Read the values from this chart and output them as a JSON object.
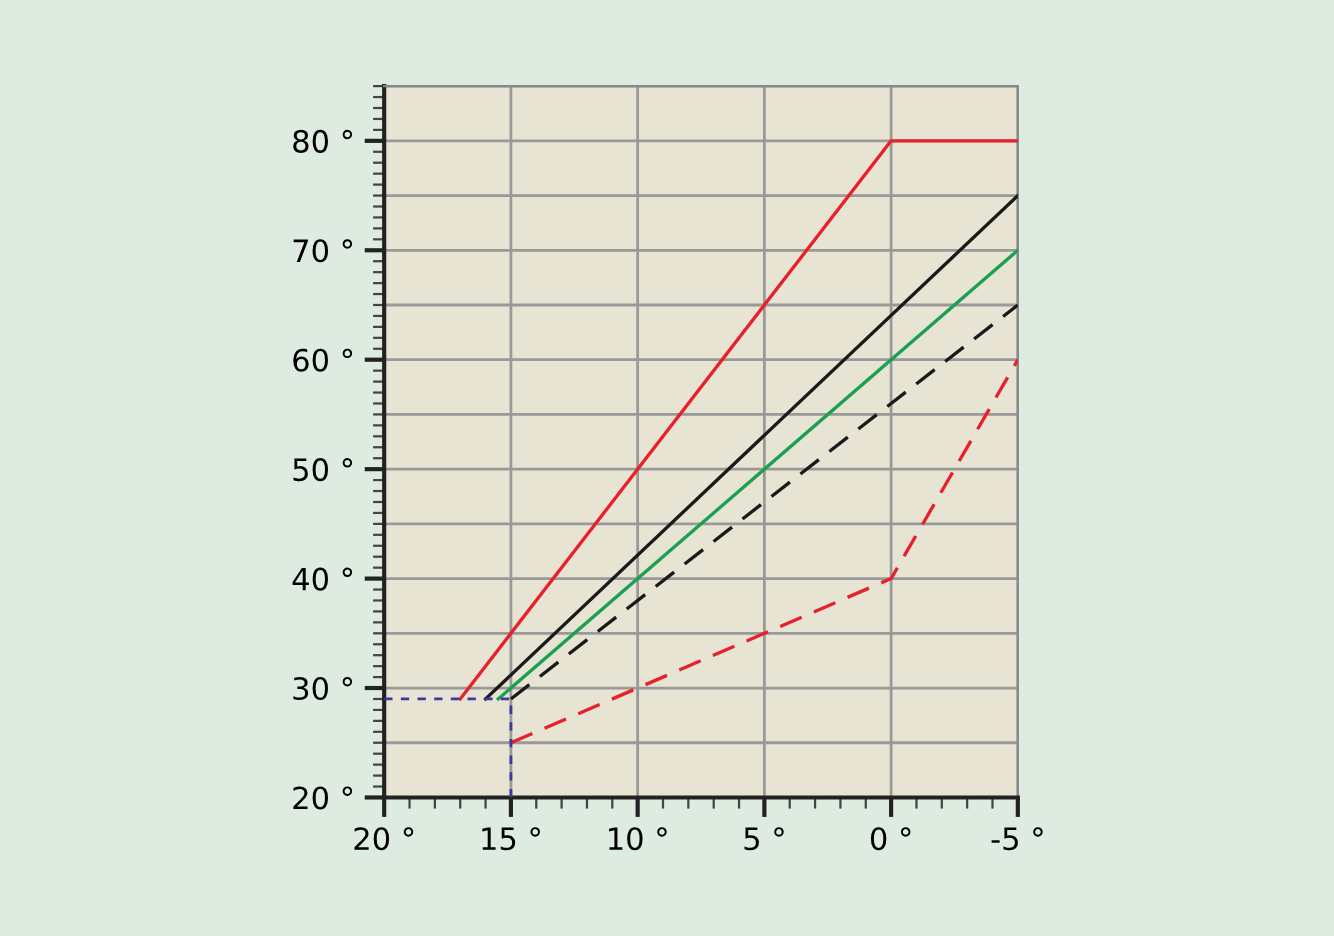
{
  "chart_data": {
    "type": "line",
    "xlim": [
      20,
      -5
    ],
    "ylim": [
      20,
      85
    ],
    "xticks": [
      {
        "value": 20,
        "label": "20 °"
      },
      {
        "value": 15,
        "label": "15 °"
      },
      {
        "value": 10,
        "label": "10 °"
      },
      {
        "value": 5,
        "label": "5 °"
      },
      {
        "value": 0,
        "label": "0 °"
      },
      {
        "value": -5,
        "label": "-5 °"
      }
    ],
    "yticks": [
      {
        "value": 20,
        "label": "20 °"
      },
      {
        "value": 30,
        "label": "30 °"
      },
      {
        "value": 40,
        "label": "40 °"
      },
      {
        "value": 50,
        "label": "50 °"
      },
      {
        "value": 60,
        "label": "60 °"
      },
      {
        "value": 70,
        "label": "70 °"
      },
      {
        "value": 80,
        "label": "80 °"
      }
    ],
    "grid": true,
    "marker": "none",
    "series": [
      {
        "color": "#e8202a",
        "line_style": "solid",
        "x": [
          17,
          0,
          -5
        ],
        "values": [
          29,
          80,
          80
        ]
      },
      {
        "color": "#1a1a1a",
        "line_style": "solid",
        "x": [
          16,
          -5
        ],
        "values": [
          29,
          75
        ]
      },
      {
        "color": "#1aa050",
        "line_style": "solid",
        "x": [
          15.5,
          -5
        ],
        "values": [
          29,
          70
        ]
      },
      {
        "color": "#1a1a1a",
        "line_style": "dashed",
        "x": [
          15,
          -5
        ],
        "values": [
          29,
          65
        ]
      },
      {
        "color": "#e8202a",
        "line_style": "dashed",
        "x": [
          15,
          0,
          -5
        ],
        "values": [
          25,
          40,
          60
        ]
      },
      {
        "color": "#3a3aa0",
        "line_style": "dotted",
        "x": [
          20,
          15,
          15
        ],
        "values": [
          29,
          29,
          20
        ]
      }
    ]
  }
}
